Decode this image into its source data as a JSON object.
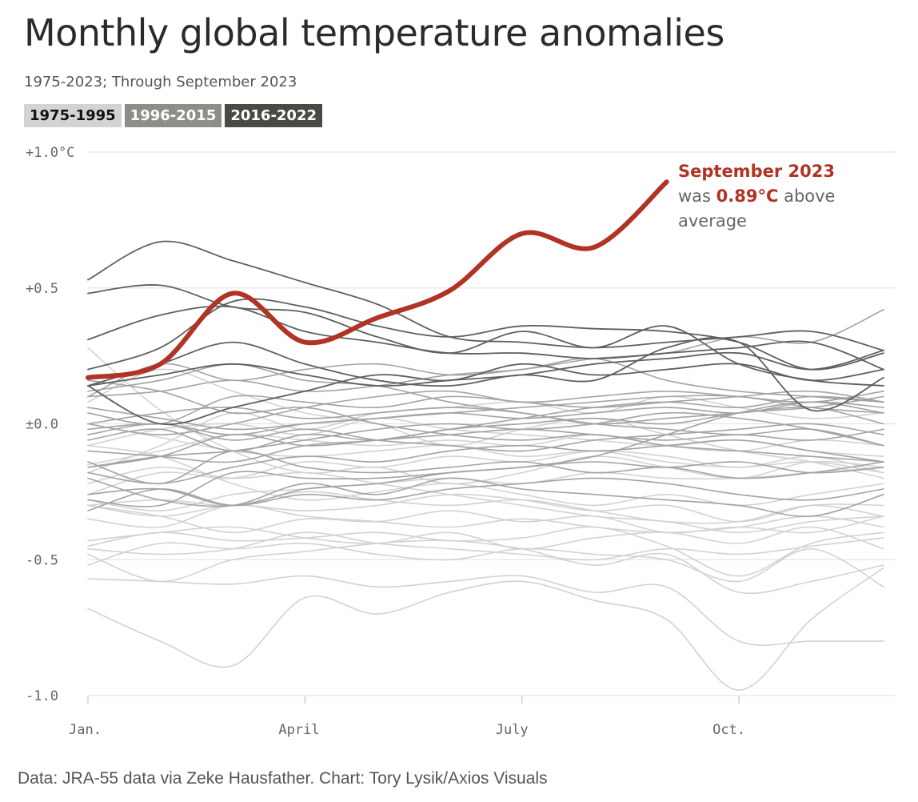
{
  "header": {
    "title": "Monthly global temperature anomalies",
    "subtitle": "1975-2023; Through September 2023"
  },
  "legend": [
    {
      "label": "1975-1995",
      "bg": "#d3d3d3",
      "fg": "#111111"
    },
    {
      "label": "1996-2015",
      "bg": "#8e8e89",
      "fg": "#ffffff"
    },
    {
      "label": "2016-2022",
      "bg": "#4a4a45",
      "fg": "#ffffff"
    }
  ],
  "source": "Data: JRA-55 data via Zeke Hausfather. Chart: Tory Lysik/Axios Visuals",
  "chart_data": {
    "type": "line",
    "title": "Monthly global temperature anomalies",
    "xlabel": "",
    "ylabel": "",
    "ylim": [
      -1.0,
      1.0
    ],
    "xlim": [
      1,
      12
    ],
    "y_ticks": [
      {
        "value": 1.0,
        "label": "+1.0°C"
      },
      {
        "value": 0.5,
        "label": "+0.5"
      },
      {
        "value": 0.0,
        "label": "±0.0"
      },
      {
        "value": -0.5,
        "label": "-0.5"
      },
      {
        "value": -1.0,
        "label": "-1.0"
      }
    ],
    "x_ticks": [
      {
        "value": 1,
        "label": "Jan."
      },
      {
        "value": 4,
        "label": "April"
      },
      {
        "value": 7,
        "label": "July"
      },
      {
        "value": 10,
        "label": "Oct."
      }
    ],
    "colors": {
      "early": "#d2d2d2",
      "mid": "#a3a3a3",
      "late": "#5f5f5f",
      "highlight": "#b03324",
      "grid": "#e4e4e4"
    },
    "annotation": {
      "title": "September 2023",
      "line2_prefix": "was ",
      "line2_value": "0.89°C",
      "line2_suffix": " above",
      "line3": "average"
    },
    "series": [
      {
        "name": "1975",
        "group": "early",
        "values": [
          -0.68,
          -0.8,
          -0.89,
          -0.64,
          -0.7,
          -0.62,
          -0.58,
          -0.65,
          -0.72,
          -0.98,
          -0.72,
          -0.53
        ]
      },
      {
        "name": "1976",
        "group": "early",
        "values": [
          -0.57,
          -0.58,
          -0.59,
          -0.56,
          -0.6,
          -0.58,
          -0.56,
          -0.62,
          -0.6,
          -0.8,
          -0.8,
          -0.8
        ]
      },
      {
        "name": "1977",
        "group": "early",
        "values": [
          -0.48,
          -0.58,
          -0.5,
          -0.47,
          -0.44,
          -0.43,
          -0.46,
          -0.52,
          -0.48,
          -0.62,
          -0.58,
          -0.52
        ]
      },
      {
        "name": "1978",
        "group": "early",
        "values": [
          -0.52,
          -0.44,
          -0.46,
          -0.44,
          -0.48,
          -0.5,
          -0.46,
          -0.48,
          -0.5,
          -0.58,
          -0.46,
          -0.6
        ]
      },
      {
        "name": "1979",
        "group": "early",
        "values": [
          -0.45,
          -0.4,
          -0.43,
          -0.42,
          -0.4,
          -0.43,
          -0.42,
          -0.38,
          -0.45,
          -0.56,
          -0.44,
          -0.4
        ]
      },
      {
        "name": "1980",
        "group": "early",
        "values": [
          -0.35,
          -0.38,
          -0.3,
          -0.34,
          -0.36,
          -0.38,
          -0.35,
          -0.38,
          -0.4,
          -0.38,
          -0.34,
          -0.38
        ]
      },
      {
        "name": "1981",
        "group": "early",
        "values": [
          -0.3,
          -0.34,
          -0.4,
          -0.35,
          -0.36,
          -0.32,
          -0.36,
          -0.34,
          -0.4,
          -0.38,
          -0.4,
          -0.34
        ]
      },
      {
        "name": "1982",
        "group": "early",
        "values": [
          -0.43,
          -0.4,
          -0.38,
          -0.42,
          -0.44,
          -0.4,
          -0.46,
          -0.42,
          -0.4,
          -0.44,
          -0.38,
          -0.46
        ]
      },
      {
        "name": "1983",
        "group": "early",
        "values": [
          -0.46,
          -0.48,
          -0.46,
          -0.4,
          -0.44,
          -0.46,
          -0.48,
          -0.5,
          -0.46,
          -0.48,
          -0.45,
          -0.42
        ]
      },
      {
        "name": "1984",
        "group": "early",
        "values": [
          -0.3,
          -0.28,
          -0.3,
          -0.25,
          -0.28,
          -0.3,
          -0.28,
          -0.32,
          -0.36,
          -0.36,
          -0.3,
          -0.34
        ]
      },
      {
        "name": "1985",
        "group": "early",
        "values": [
          -0.08,
          -0.12,
          -0.22,
          -0.28,
          -0.25,
          -0.22,
          -0.26,
          -0.3,
          -0.26,
          -0.3,
          -0.26,
          -0.22
        ]
      },
      {
        "name": "1986",
        "group": "early",
        "values": [
          0.28,
          0.05,
          -0.1,
          -0.18,
          -0.16,
          -0.22,
          -0.18,
          -0.12,
          -0.16,
          -0.2,
          -0.14,
          -0.16
        ]
      },
      {
        "name": "1987",
        "group": "early",
        "values": [
          -0.18,
          -0.08,
          0.04,
          -0.02,
          0.04,
          0.06,
          0.08,
          0.04,
          0.1,
          0.06,
          0.02,
          0.04
        ]
      },
      {
        "name": "1988",
        "group": "early",
        "values": [
          0.08,
          0.2,
          0.12,
          0.04,
          0.0,
          -0.08,
          -0.02,
          0.02,
          -0.04,
          -0.1,
          -0.14,
          -0.2
        ]
      },
      {
        "name": "1989",
        "group": "early",
        "values": [
          -0.26,
          -0.18,
          -0.2,
          -0.14,
          -0.16,
          -0.12,
          -0.14,
          -0.1,
          -0.12,
          -0.16,
          -0.12,
          -0.18
        ]
      },
      {
        "name": "1990",
        "group": "early",
        "values": [
          -0.15,
          -0.1,
          -0.04,
          -0.06,
          -0.08,
          -0.06,
          -0.08,
          -0.04,
          -0.08,
          -0.1,
          -0.06,
          -0.08
        ]
      },
      {
        "name": "1991",
        "group": "early",
        "values": [
          -0.08,
          -0.02,
          0.0,
          -0.04,
          0.02,
          -0.02,
          -0.04,
          -0.06,
          -0.08,
          -0.06,
          -0.1,
          -0.12
        ]
      },
      {
        "name": "1992",
        "group": "early",
        "values": [
          -0.22,
          -0.16,
          -0.2,
          -0.18,
          -0.22,
          -0.26,
          -0.3,
          -0.34,
          -0.36,
          -0.4,
          -0.36,
          -0.34
        ]
      },
      {
        "name": "1993",
        "group": "early",
        "values": [
          -0.3,
          -0.34,
          -0.3,
          -0.32,
          -0.3,
          -0.26,
          -0.28,
          -0.32,
          -0.3,
          -0.36,
          -0.3,
          -0.3
        ]
      },
      {
        "name": "1994",
        "group": "early",
        "values": [
          -0.28,
          -0.32,
          -0.26,
          -0.24,
          -0.22,
          -0.2,
          -0.22,
          -0.18,
          -0.2,
          -0.2,
          -0.18,
          -0.16
        ]
      },
      {
        "name": "1995",
        "group": "early",
        "values": [
          0.0,
          -0.05,
          -0.1,
          -0.12,
          -0.1,
          -0.08,
          -0.12,
          -0.1,
          -0.14,
          -0.16,
          -0.14,
          -0.18
        ]
      },
      {
        "name": "1996",
        "group": "mid",
        "values": [
          -0.14,
          -0.22,
          -0.1,
          -0.16,
          -0.18,
          -0.16,
          -0.14,
          -0.18,
          -0.16,
          -0.2,
          -0.18,
          -0.14
        ]
      },
      {
        "name": "1997",
        "group": "mid",
        "values": [
          -0.26,
          -0.24,
          -0.3,
          -0.24,
          -0.22,
          -0.18,
          -0.16,
          -0.12,
          -0.04,
          0.04,
          0.08,
          0.04
        ]
      },
      {
        "name": "1998",
        "group": "mid",
        "values": [
          0.1,
          0.22,
          0.16,
          0.2,
          0.22,
          0.18,
          0.2,
          0.24,
          0.16,
          0.12,
          0.1,
          0.08
        ]
      },
      {
        "name": "1999",
        "group": "mid",
        "values": [
          -0.2,
          -0.28,
          -0.3,
          -0.22,
          -0.26,
          -0.2,
          -0.24,
          -0.26,
          -0.28,
          -0.3,
          -0.34,
          -0.26
        ]
      },
      {
        "name": "2000",
        "group": "mid",
        "values": [
          -0.32,
          -0.24,
          -0.3,
          -0.26,
          -0.28,
          -0.24,
          -0.22,
          -0.2,
          -0.22,
          -0.26,
          -0.28,
          -0.24
        ]
      },
      {
        "name": "2001",
        "group": "mid",
        "values": [
          -0.16,
          -0.12,
          -0.04,
          -0.08,
          -0.06,
          -0.04,
          -0.02,
          -0.04,
          -0.06,
          -0.04,
          -0.06,
          -0.02
        ]
      },
      {
        "name": "2002",
        "group": "mid",
        "values": [
          0.0,
          0.04,
          0.06,
          0.02,
          0.04,
          0.06,
          0.04,
          0.0,
          0.02,
          0.04,
          0.06,
          0.0
        ]
      },
      {
        "name": "2003",
        "group": "mid",
        "values": [
          0.06,
          0.02,
          -0.02,
          0.0,
          0.02,
          0.04,
          0.06,
          0.08,
          0.1,
          0.1,
          0.06,
          0.04
        ]
      },
      {
        "name": "2004",
        "group": "mid",
        "values": [
          -0.04,
          0.0,
          -0.06,
          -0.02,
          -0.06,
          -0.08,
          -0.1,
          -0.06,
          -0.04,
          -0.02,
          0.0,
          -0.04
        ]
      },
      {
        "name": "2005",
        "group": "mid",
        "values": [
          0.04,
          0.0,
          0.1,
          0.08,
          0.06,
          0.1,
          0.08,
          0.06,
          0.08,
          0.1,
          0.12,
          0.08
        ]
      },
      {
        "name": "2006",
        "group": "mid",
        "values": [
          -0.06,
          -0.02,
          -0.1,
          -0.04,
          -0.06,
          -0.02,
          0.0,
          0.02,
          0.0,
          0.04,
          0.06,
          0.1
        ]
      },
      {
        "name": "2007",
        "group": "mid",
        "values": [
          0.16,
          0.12,
          0.04,
          0.06,
          0.0,
          -0.04,
          -0.06,
          -0.04,
          -0.08,
          -0.1,
          -0.12,
          -0.14
        ]
      },
      {
        "name": "2008",
        "group": "mid",
        "values": [
          -0.28,
          -0.3,
          -0.18,
          -0.2,
          -0.2,
          -0.18,
          -0.16,
          -0.14,
          -0.16,
          -0.14,
          -0.18,
          -0.16
        ]
      },
      {
        "name": "2009",
        "group": "mid",
        "values": [
          -0.1,
          -0.12,
          -0.14,
          -0.08,
          -0.06,
          -0.02,
          0.02,
          0.06,
          0.08,
          0.06,
          0.1,
          0.08
        ]
      },
      {
        "name": "2010",
        "group": "mid",
        "values": [
          0.12,
          0.16,
          0.22,
          0.16,
          0.14,
          0.08,
          0.04,
          0.0,
          -0.02,
          -0.04,
          -0.02,
          -0.08
        ]
      },
      {
        "name": "2011",
        "group": "mid",
        "values": [
          -0.18,
          -0.22,
          -0.16,
          -0.12,
          -0.14,
          -0.1,
          -0.08,
          -0.1,
          -0.08,
          -0.06,
          -0.1,
          -0.14
        ]
      },
      {
        "name": "2012",
        "group": "mid",
        "values": [
          -0.16,
          -0.12,
          -0.1,
          -0.06,
          -0.02,
          0.0,
          -0.02,
          0.0,
          0.04,
          0.02,
          -0.02,
          -0.08
        ]
      },
      {
        "name": "2013",
        "group": "mid",
        "values": [
          -0.02,
          0.0,
          -0.04,
          0.0,
          0.02,
          0.04,
          0.02,
          0.04,
          0.06,
          0.04,
          0.08,
          0.06
        ]
      },
      {
        "name": "2014",
        "group": "mid",
        "values": [
          0.0,
          -0.04,
          0.0,
          0.06,
          0.1,
          0.12,
          0.08,
          0.1,
          0.12,
          0.1,
          0.08,
          0.12
        ]
      },
      {
        "name": "2015",
        "group": "mid",
        "values": [
          0.1,
          0.12,
          0.16,
          0.12,
          0.14,
          0.18,
          0.2,
          0.24,
          0.26,
          0.32,
          0.3,
          0.42
        ]
      },
      {
        "name": "2016",
        "group": "late",
        "values": [
          0.53,
          0.67,
          0.6,
          0.52,
          0.44,
          0.32,
          0.3,
          0.28,
          0.3,
          0.32,
          0.34,
          0.27
        ]
      },
      {
        "name": "2017",
        "group": "late",
        "values": [
          0.31,
          0.4,
          0.43,
          0.34,
          0.3,
          0.26,
          0.26,
          0.24,
          0.26,
          0.28,
          0.3,
          0.2
        ]
      },
      {
        "name": "2018",
        "group": "late",
        "values": [
          0.14,
          0.18,
          0.22,
          0.18,
          0.14,
          0.16,
          0.18,
          0.22,
          0.24,
          0.26,
          0.2,
          0.27
        ]
      },
      {
        "name": "2019",
        "group": "late",
        "values": [
          0.2,
          0.28,
          0.45,
          0.43,
          0.36,
          0.32,
          0.36,
          0.35,
          0.34,
          0.3,
          0.2,
          0.26
        ]
      },
      {
        "name": "2020",
        "group": "late",
        "values": [
          0.48,
          0.51,
          0.43,
          0.41,
          0.32,
          0.26,
          0.34,
          0.28,
          0.36,
          0.22,
          0.16,
          0.14
        ]
      },
      {
        "name": "2021",
        "group": "late",
        "values": [
          0.14,
          0.0,
          0.06,
          0.12,
          0.18,
          0.16,
          0.22,
          0.18,
          0.2,
          0.22,
          0.16,
          0.2
        ]
      },
      {
        "name": "2022",
        "group": "late",
        "values": [
          0.14,
          0.22,
          0.3,
          0.22,
          0.16,
          0.14,
          0.18,
          0.16,
          0.28,
          0.3,
          0.05,
          0.17
        ]
      },
      {
        "name": "2023",
        "group": "highlight",
        "values": [
          0.17,
          0.22,
          0.48,
          0.3,
          0.39,
          0.49,
          0.7,
          0.65,
          0.89
        ]
      }
    ]
  }
}
